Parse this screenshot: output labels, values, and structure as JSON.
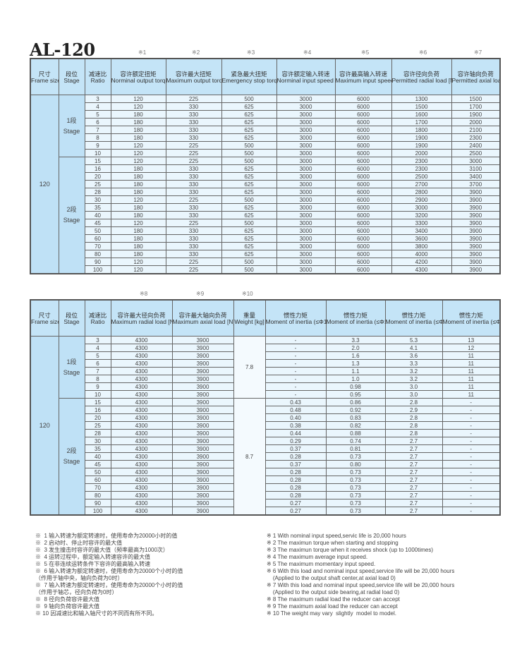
{
  "title": "AL-120",
  "table1": {
    "marks": [
      "※1",
      "※2",
      "※3",
      "※4",
      "※5",
      "※6",
      "※7"
    ],
    "headers": [
      {
        "cn": "尺寸",
        "en": "Frame size"
      },
      {
        "cn": "段位",
        "en": "Stage"
      },
      {
        "cn": "减速比",
        "en": "Ratio"
      },
      {
        "cn": "容许额定扭矩",
        "en": "Norminal output torque [Nm]"
      },
      {
        "cn": "容许最大扭矩",
        "en": "Maximum output torque [Nm]"
      },
      {
        "cn": "紧急最大扭矩",
        "en": "Emergency stop torque [Nm]"
      },
      {
        "cn": "容许额定输入转速",
        "en": "Norminal input speed [rpm]"
      },
      {
        "cn": "容许最高输入转速",
        "en": "Maximum input speed [rpm]"
      },
      {
        "cn": "容许径向负荷",
        "en": "Permitted radial load [N]"
      },
      {
        "cn": "容许轴向负荷",
        "en": "Permitted axial load [N]"
      }
    ],
    "frame_size": "120",
    "stage1_label": {
      "cn": "1段",
      "en": "Stage"
    },
    "stage2_label": {
      "cn": "2段",
      "en": "Stage"
    },
    "stage1_rows": [
      [
        "3",
        "120",
        "225",
        "500",
        "3000",
        "6000",
        "1300",
        "1500"
      ],
      [
        "4",
        "120",
        "330",
        "625",
        "3000",
        "6000",
        "1500",
        "1700"
      ],
      [
        "5",
        "180",
        "330",
        "625",
        "3000",
        "6000",
        "1600",
        "1900"
      ],
      [
        "6",
        "180",
        "330",
        "625",
        "3000",
        "6000",
        "1700",
        "2000"
      ],
      [
        "7",
        "180",
        "330",
        "625",
        "3000",
        "6000",
        "1800",
        "2100"
      ],
      [
        "8",
        "180",
        "330",
        "625",
        "3000",
        "6000",
        "1900",
        "2300"
      ],
      [
        "9",
        "120",
        "225",
        "500",
        "3000",
        "6000",
        "1900",
        "2400"
      ],
      [
        "10",
        "120",
        "225",
        "500",
        "3000",
        "6000",
        "2000",
        "2500"
      ]
    ],
    "stage2_rows": [
      [
        "15",
        "120",
        "225",
        "500",
        "3000",
        "6000",
        "2300",
        "3000"
      ],
      [
        "16",
        "180",
        "330",
        "625",
        "3000",
        "6000",
        "2300",
        "3100"
      ],
      [
        "20",
        "180",
        "330",
        "625",
        "3000",
        "6000",
        "2500",
        "3400"
      ],
      [
        "25",
        "180",
        "330",
        "625",
        "3000",
        "6000",
        "2700",
        "3700"
      ],
      [
        "28",
        "180",
        "330",
        "625",
        "3000",
        "6000",
        "2800",
        "3900"
      ],
      [
        "30",
        "120",
        "225",
        "500",
        "3000",
        "6000",
        "2900",
        "3900"
      ],
      [
        "35",
        "180",
        "330",
        "625",
        "3000",
        "6000",
        "3000",
        "3900"
      ],
      [
        "40",
        "180",
        "330",
        "625",
        "3000",
        "6000",
        "3200",
        "3900"
      ],
      [
        "45",
        "120",
        "225",
        "500",
        "3000",
        "6000",
        "3300",
        "3900"
      ],
      [
        "50",
        "180",
        "330",
        "625",
        "3000",
        "6000",
        "3400",
        "3900"
      ],
      [
        "60",
        "180",
        "330",
        "625",
        "3000",
        "6000",
        "3600",
        "3900"
      ],
      [
        "70",
        "180",
        "330",
        "625",
        "3000",
        "6000",
        "3800",
        "3900"
      ],
      [
        "80",
        "180",
        "330",
        "625",
        "3000",
        "6000",
        "4000",
        "3900"
      ],
      [
        "90",
        "120",
        "225",
        "500",
        "3000",
        "6000",
        "4200",
        "3900"
      ],
      [
        "100",
        "120",
        "225",
        "500",
        "3000",
        "6000",
        "4300",
        "3900"
      ]
    ]
  },
  "table2": {
    "marks": [
      "※8",
      "※9",
      "※10"
    ],
    "headers": [
      {
        "cn": "尺寸",
        "en": "Frame size"
      },
      {
        "cn": "段位",
        "en": "Stage"
      },
      {
        "cn": "减速比",
        "en": "Ratio"
      },
      {
        "cn": "容许最大径向负荷",
        "en": "Maximum radial load [N]"
      },
      {
        "cn": "容许最大轴向负荷",
        "en": "Maximum axial load [N]"
      },
      {
        "cn": "重量",
        "en": "Weight [kg]"
      },
      {
        "cn": "惯性力矩",
        "en": "Moment of inertia (≤Φ14) [kgcm²]"
      },
      {
        "cn": "惯性力矩",
        "en": "Moment of inertia (≤Φ19) [kgcm²]"
      },
      {
        "cn": "惯性力矩",
        "en": "Moment of inertia (≤Φ28) [kgcm²]"
      },
      {
        "cn": "惯性力矩",
        "en": "Moment of inertia (≤Φ38) [kgcm²]"
      }
    ],
    "frame_size": "120",
    "stage1_label": {
      "cn": "1段",
      "en": "Stage"
    },
    "stage2_label": {
      "cn": "2段",
      "en": "Stage"
    },
    "stage1_weight": "7.8",
    "stage2_weight": "8.7",
    "stage1_rows": [
      [
        "3",
        "4300",
        "3900",
        "-",
        "3.3",
        "5.3",
        "13"
      ],
      [
        "4",
        "4300",
        "3900",
        "-",
        "2.0",
        "4.1",
        "12"
      ],
      [
        "5",
        "4300",
        "3900",
        "-",
        "1.6",
        "3.6",
        "11"
      ],
      [
        "6",
        "4300",
        "3900",
        "-",
        "1.3",
        "3.3",
        "11"
      ],
      [
        "7",
        "4300",
        "3900",
        "-",
        "1.1",
        "3.2",
        "11"
      ],
      [
        "8",
        "4300",
        "3900",
        "-",
        "1.0",
        "3.2",
        "11"
      ],
      [
        "9",
        "4300",
        "3900",
        "-",
        "0.98",
        "3.0",
        "11"
      ],
      [
        "10",
        "4300",
        "3900",
        "-",
        "0.95",
        "3.0",
        "11"
      ]
    ],
    "stage2_rows": [
      [
        "15",
        "4300",
        "3900",
        "0.43",
        "0.86",
        "2.8",
        "-"
      ],
      [
        "16",
        "4300",
        "3900",
        "0.48",
        "0.92",
        "2.9",
        "-"
      ],
      [
        "20",
        "4300",
        "3900",
        "0.40",
        "0.83",
        "2.8",
        "-"
      ],
      [
        "25",
        "4300",
        "3900",
        "0.38",
        "0.82",
        "2.8",
        "-"
      ],
      [
        "28",
        "4300",
        "3900",
        "0.44",
        "0.88",
        "2.8",
        "-"
      ],
      [
        "30",
        "4300",
        "3900",
        "0.29",
        "0.74",
        "2.7",
        "-"
      ],
      [
        "35",
        "4300",
        "3900",
        "0.37",
        "0.81",
        "2.7",
        "-"
      ],
      [
        "40",
        "4300",
        "3900",
        "0.28",
        "0.73",
        "2.7",
        "-"
      ],
      [
        "45",
        "4300",
        "3900",
        "0.37",
        "0.80",
        "2.7",
        "-"
      ],
      [
        "50",
        "4300",
        "3900",
        "0.28",
        "0.73",
        "2.7",
        "-"
      ],
      [
        "60",
        "4300",
        "3900",
        "0.28",
        "0.73",
        "2.7",
        "-"
      ],
      [
        "70",
        "4300",
        "3900",
        "0.28",
        "0.73",
        "2.7",
        "-"
      ],
      [
        "80",
        "4300",
        "3900",
        "0.28",
        "0.73",
        "2.7",
        "-"
      ],
      [
        "90",
        "4300",
        "3900",
        "0.27",
        "0.73",
        "2.7",
        "-"
      ],
      [
        "100",
        "4300",
        "3900",
        "0.27",
        "0.73",
        "2.7",
        "-"
      ]
    ]
  },
  "notes_cn": [
    "※  1 输入转速为额定转速时，使用寿命为20000小时的值",
    "※  2 启动时、停止时容许的最大值",
    "※  3 发生撞击时容许的最大值（频率最高为1000次）",
    "※  4 运转过程中，额定输入转速容许的最大值",
    "※  5 在非连续运转条件下容许的最高输入转速",
    "※  6 输入转速为额定转速时，使用寿命为20000个小时的值",
    "（作用于轴中央，轴向负荷为0时）",
    "※  7 输入转速为额定转速时，使用寿命为20000个小时的值",
    "（作用于轴芯，径向负荷为0时）",
    "※  8 径向负荷容许最大值",
    "※  9 轴向负荷容许最大值",
    "※ 10 因减速比和输入轴尺寸的不同而有所不同。"
  ],
  "notes_en": [
    "※ 1 With nominal input speed,servic life is 20,000 hours",
    "※ 2 The maximun torque when starting and stopping",
    "※ 3 The maximun torque when it receives shock (up to 1000times)",
    "※ 4 The maximum average input speed.",
    "※ 5 The maximum momentary input speed.",
    "※ 6 With this load and nominal input speed,service life will be 20,000 hours",
    "    (Applied to the output shaft center,at axial load 0)",
    "※ 7 With this load and nominal input speed,service life will be 20,000 hours",
    "    (Applied to the output side bearing,at radial load 0)",
    "※ 8 The maximum radial load the reducer can accept",
    "※ 9 The maximum axial load the reducer can accept",
    "※ 10 The weight may vary  slightly  model to model."
  ]
}
